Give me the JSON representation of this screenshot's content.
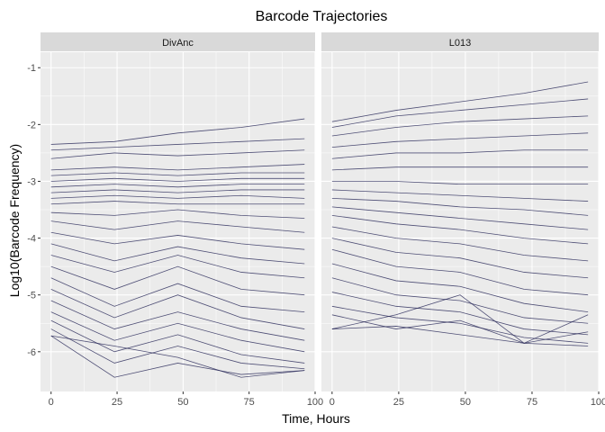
{
  "chart_data": {
    "type": "line",
    "title": "Barcode Trajectories",
    "xlabel": "Time, Hours",
    "ylabel": "Log10(Barcode Frequency)",
    "xlim": [
      -4,
      100
    ],
    "ylim": [
      -6.7,
      -0.6
    ],
    "x_ticks": [
      0,
      25,
      50,
      75,
      100
    ],
    "y_ticks": [
      -1,
      -2,
      -3,
      -4,
      -5,
      -6
    ],
    "x_tick_labels": [
      "0",
      "25",
      "50",
      "75",
      "100"
    ],
    "y_tick_labels": [
      "-1",
      "-2",
      "-3",
      "-4",
      "-5",
      "-6"
    ],
    "grid": true,
    "line_color": "#1a1a4d",
    "panel_background": "#ebebeb",
    "strip_background": "#d9d9d9",
    "panels": [
      {
        "label": "DivAnc",
        "x": [
          0,
          24,
          48,
          72,
          96
        ],
        "series": [
          {
            "values": [
              -2.35,
              -2.3,
              -2.15,
              -2.05,
              -1.9
            ]
          },
          {
            "values": [
              -2.45,
              -2.4,
              -2.35,
              -2.3,
              -2.25
            ]
          },
          {
            "values": [
              -2.6,
              -2.5,
              -2.55,
              -2.5,
              -2.45
            ]
          },
          {
            "values": [
              -2.8,
              -2.75,
              -2.8,
              -2.75,
              -2.7
            ]
          },
          {
            "values": [
              -2.9,
              -2.85,
              -2.9,
              -2.85,
              -2.85
            ]
          },
          {
            "values": [
              -3.0,
              -2.95,
              -3.0,
              -2.95,
              -2.95
            ]
          },
          {
            "values": [
              -3.1,
              -3.05,
              -3.1,
              -3.05,
              -3.05
            ]
          },
          {
            "values": [
              -3.2,
              -3.15,
              -3.2,
              -3.15,
              -3.15
            ]
          },
          {
            "values": [
              -3.3,
              -3.25,
              -3.3,
              -3.25,
              -3.3
            ]
          },
          {
            "values": [
              -3.4,
              -3.35,
              -3.4,
              -3.4,
              -3.4
            ]
          },
          {
            "values": [
              -3.55,
              -3.6,
              -3.5,
              -3.6,
              -3.65
            ]
          },
          {
            "values": [
              -3.7,
              -3.85,
              -3.7,
              -3.8,
              -3.9
            ]
          },
          {
            "values": [
              -3.9,
              -4.1,
              -3.95,
              -4.1,
              -4.2
            ]
          },
          {
            "values": [
              -4.1,
              -4.4,
              -4.15,
              -4.35,
              -4.45
            ]
          },
          {
            "values": [
              -4.3,
              -4.6,
              -4.3,
              -4.6,
              -4.7
            ]
          },
          {
            "values": [
              -4.5,
              -4.9,
              -4.5,
              -4.9,
              -5.0
            ]
          },
          {
            "values": [
              -4.7,
              -5.2,
              -4.8,
              -5.2,
              -5.3
            ]
          },
          {
            "values": [
              -4.9,
              -5.4,
              -5.0,
              -5.4,
              -5.6
            ]
          },
          {
            "values": [
              -5.1,
              -5.6,
              -5.3,
              -5.6,
              -5.8
            ]
          },
          {
            "values": [
              -5.3,
              -5.8,
              -5.5,
              -5.8,
              -6.0
            ]
          },
          {
            "values": [
              -5.45,
              -6.0,
              -5.7,
              -6.05,
              -6.2
            ]
          },
          {
            "values": [
              -5.6,
              -6.2,
              -5.9,
              -6.2,
              -6.3
            ]
          },
          {
            "values": [
              -5.72,
              -6.45,
              -6.2,
              -6.4,
              -6.33
            ]
          },
          {
            "values": [
              -5.72,
              -5.9,
              -6.1,
              -6.45,
              -6.33
            ]
          }
        ]
      },
      {
        "label": "L013",
        "x": [
          0,
          24,
          48,
          72,
          96
        ],
        "series": [
          {
            "values": [
              -1.95,
              -1.75,
              -1.6,
              -1.45,
              -1.25
            ]
          },
          {
            "values": [
              -2.05,
              -1.85,
              -1.75,
              -1.65,
              -1.55
            ]
          },
          {
            "values": [
              -2.2,
              -2.05,
              -1.95,
              -1.9,
              -1.85
            ]
          },
          {
            "values": [
              -2.4,
              -2.3,
              -2.25,
              -2.2,
              -2.15
            ]
          },
          {
            "values": [
              -2.6,
              -2.5,
              -2.5,
              -2.45,
              -2.45
            ]
          },
          {
            "values": [
              -2.8,
              -2.75,
              -2.75,
              -2.75,
              -2.75
            ]
          },
          {
            "values": [
              -3.0,
              -3.0,
              -3.05,
              -3.05,
              -3.05
            ]
          },
          {
            "values": [
              -3.15,
              -3.2,
              -3.25,
              -3.3,
              -3.35
            ]
          },
          {
            "values": [
              -3.3,
              -3.35,
              -3.45,
              -3.5,
              -3.6
            ]
          },
          {
            "values": [
              -3.45,
              -3.55,
              -3.65,
              -3.75,
              -3.85
            ]
          },
          {
            "values": [
              -3.6,
              -3.75,
              -3.85,
              -4.0,
              -4.1
            ]
          },
          {
            "values": [
              -3.8,
              -4.0,
              -4.1,
              -4.3,
              -4.4
            ]
          },
          {
            "values": [
              -4.0,
              -4.25,
              -4.35,
              -4.6,
              -4.7
            ]
          },
          {
            "values": [
              -4.2,
              -4.5,
              -4.6,
              -4.9,
              -5.0
            ]
          },
          {
            "values": [
              -4.45,
              -4.75,
              -4.85,
              -5.15,
              -5.3
            ]
          },
          {
            "values": [
              -4.7,
              -5.0,
              -5.1,
              -5.4,
              -5.5
            ]
          },
          {
            "values": [
              -4.95,
              -5.2,
              -5.3,
              -5.6,
              -5.7
            ]
          },
          {
            "values": [
              -5.2,
              -5.4,
              -5.5,
              -5.75,
              -5.85
            ]
          },
          {
            "values": [
              -5.35,
              -5.6,
              -5.45,
              -5.85,
              -5.9
            ]
          },
          {
            "values": [
              -5.6,
              -5.55,
              -5.7,
              -5.85,
              -5.65
            ]
          },
          {
            "values": [
              -5.6,
              -5.35,
              -5.0,
              -5.85,
              -5.35
            ]
          }
        ]
      }
    ]
  }
}
